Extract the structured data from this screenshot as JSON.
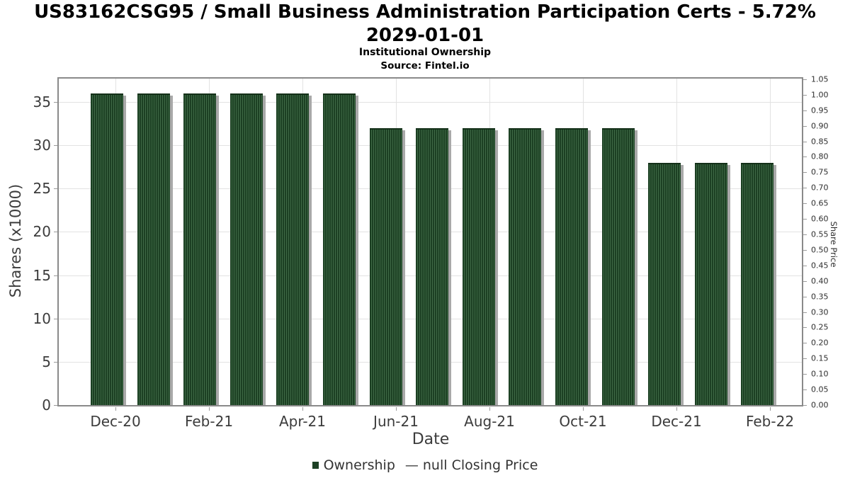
{
  "title": "US83162CSG95 / Small Business Administration Participation Certs - 5.72% 2029-01-01",
  "subtitle": "Institutional Ownership",
  "source": "Source: Fintel.io",
  "legend": {
    "ownership_label": "Ownership",
    "price_dash": "—",
    "price_label": "null Closing Price"
  },
  "chart_data": {
    "type": "bar",
    "series_name": "Ownership",
    "categories": [
      "Dec-20",
      "Jan-21",
      "Feb-21",
      "Mar-21",
      "Apr-21",
      "May-21",
      "Jun-21",
      "Jul-21",
      "Aug-21",
      "Sep-21",
      "Oct-21",
      "Nov-21",
      "Dec-21",
      "Jan-22",
      "Feb-22"
    ],
    "values": [
      36,
      36,
      36,
      36,
      36,
      36,
      32,
      32,
      32,
      32,
      32,
      32,
      28,
      28,
      28
    ],
    "xlabel": "Date",
    "ylabel_left": "Shares (x1000)",
    "ylabel_right": "Share Price",
    "ylim_left": [
      0,
      37.7
    ],
    "ylim_right": [
      0,
      1.052
    ],
    "x_tick_labels": [
      "Dec-20",
      "Feb-21",
      "Apr-21",
      "Jun-21",
      "Aug-21",
      "Oct-21",
      "Dec-21",
      "Feb-22"
    ],
    "y_left_ticks": [
      0,
      5,
      10,
      15,
      20,
      25,
      30,
      35
    ],
    "y_right_ticks": [
      "0.00",
      "0.05",
      "0.10",
      "0.15",
      "0.20",
      "0.25",
      "0.30",
      "0.35",
      "0.40",
      "0.45",
      "0.50",
      "0.55",
      "0.60",
      "0.65",
      "0.70",
      "0.75",
      "0.80",
      "0.85",
      "0.90",
      "0.95",
      "1.00",
      "1.05"
    ],
    "grid": true,
    "legend_position": "bottom",
    "bar_color": "#1c4023",
    "bar_stripe_color": "#3f6a46",
    "bar_shadow_color": "#a9a9a9",
    "closing_price_series": "null"
  }
}
